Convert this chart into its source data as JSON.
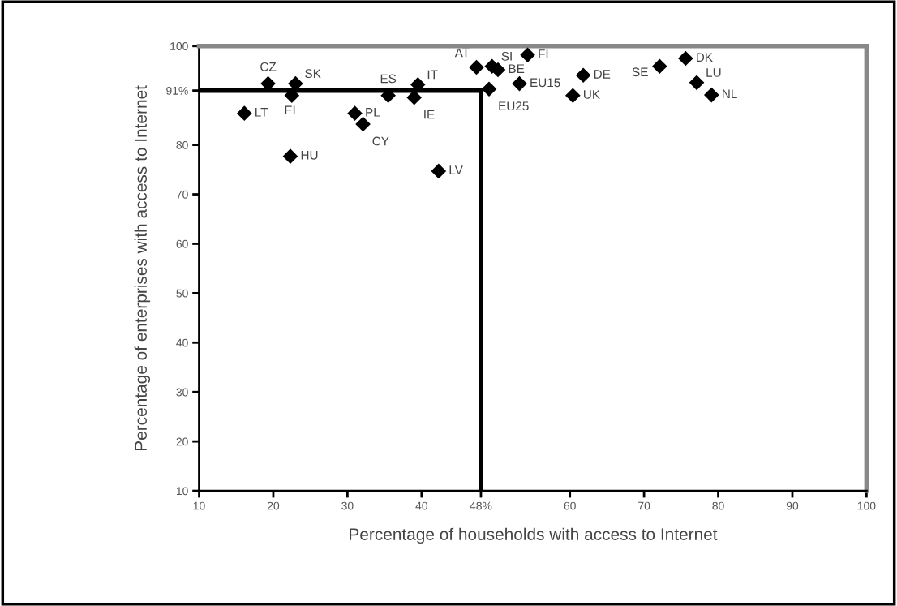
{
  "chart_data": {
    "type": "scatter",
    "xlabel": "Percentage of households with access to Internet",
    "ylabel": "Percentage of enterprises with access to Internet",
    "xlim": [
      10,
      100
    ],
    "ylim": [
      10,
      100
    ],
    "xticks": [
      10,
      20,
      30,
      40,
      {
        "value": 48,
        "label": "48%"
      },
      60,
      70,
      80,
      90,
      100
    ],
    "yticks": [
      10,
      20,
      30,
      40,
      50,
      60,
      70,
      80,
      {
        "value": 91,
        "label": "91%"
      },
      100
    ],
    "grid": false,
    "marker": "diamond",
    "series": [
      {
        "color": "#000000",
        "x": [
          16.1,
          19.3,
          23,
          22.5,
          22.3,
          31.0,
          32.1,
          35.5,
          39.5,
          39.0,
          42.3,
          47.4,
          49.5,
          50.3,
          54.3,
          49.1,
          53.2,
          60.4,
          61.8,
          72.1,
          75.6,
          77.1,
          79.1
        ],
        "values": [
          86.4,
          92.4,
          92.4,
          90,
          77.7,
          86.4,
          84.2,
          90.0,
          92.2,
          89.6,
          74.7,
          95.7,
          95.9,
          95.2,
          98.2,
          91.3,
          92.4,
          90.0,
          94.1,
          95.9,
          97.5,
          92.6,
          90.1
        ]
      }
    ],
    "annotations": [
      {
        "text": "LT",
        "x": 16.1,
        "y": 86.4
      },
      {
        "text": "CZ",
        "x": 19.3,
        "y": 92.4
      },
      {
        "text": "SK",
        "x": 23,
        "y": 92.4
      },
      {
        "text": "EL",
        "x": 22.5,
        "y": 90
      },
      {
        "text": "HU",
        "x": 22.3,
        "y": 77.7
      },
      {
        "text": "PL",
        "x": 31.0,
        "y": 86.4
      },
      {
        "text": "CY",
        "x": 32.1,
        "y": 84.2
      },
      {
        "text": "ES",
        "x": 35.5,
        "y": 90.0
      },
      {
        "text": "IT",
        "x": 39.5,
        "y": 92.2
      },
      {
        "text": "IE",
        "x": 39.0,
        "y": 89.6
      },
      {
        "text": "LV",
        "x": 42.3,
        "y": 74.7
      },
      {
        "text": "AT",
        "x": 47.4,
        "y": 95.7
      },
      {
        "text": "SI",
        "x": 49.5,
        "y": 95.9
      },
      {
        "text": "BE",
        "x": 50.3,
        "y": 95.2
      },
      {
        "text": "FI",
        "x": 54.3,
        "y": 98.2
      },
      {
        "text": "EU25",
        "x": 49.1,
        "y": 91.3
      },
      {
        "text": "EU15",
        "x": 53.2,
        "y": 92.4
      },
      {
        "text": "UK",
        "x": 60.4,
        "y": 90.0
      },
      {
        "text": "DE",
        "x": 61.8,
        "y": 94.1
      },
      {
        "text": "SE",
        "x": 72.1,
        "y": 95.9
      },
      {
        "text": "DK",
        "x": 75.6,
        "y": 97.5
      },
      {
        "text": "LU",
        "x": 77.1,
        "y": 92.6
      },
      {
        "text": "NL",
        "x": 79.1,
        "y": 90.1
      }
    ],
    "ref_lines": [
      {
        "axis": "y",
        "value": 91,
        "color": "#000000"
      },
      {
        "axis": "x",
        "value": 48,
        "color": "#000000"
      }
    ]
  }
}
